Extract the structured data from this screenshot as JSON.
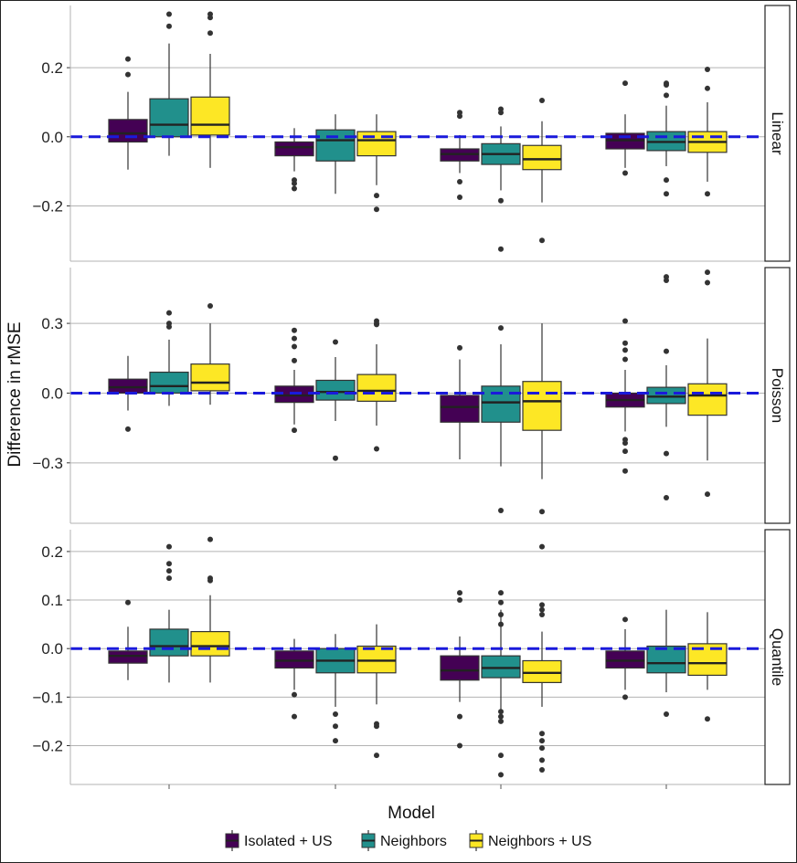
{
  "chart_data": {
    "type": "box",
    "ylabel": "Difference in rMSE",
    "xlabel": "",
    "legend": {
      "title": "Model",
      "placement": "bottom",
      "entries": [
        "Isolated + US",
        "Neighbors",
        "Neighbors + US"
      ]
    },
    "colors": {
      "Isolated + US": "#440154",
      "Neighbors": "#21908C",
      "Neighbors + US": "#FDE725",
      "reference_line": "#1a1adb",
      "grid": "#b3b3b3"
    },
    "reference_line_y": 0,
    "groups": 4,
    "panels": [
      {
        "facet": "Linear",
        "ylim": [
          -0.36,
          0.38
        ],
        "yticks": [
          0.2,
          0.0,
          -0.2
        ],
        "ytick_labels": [
          "0.2",
          "0.0",
          "−0.2"
        ],
        "groups": [
          [
            {
              "series": "Isolated + US",
              "q1": -0.015,
              "median": 0.01,
              "q3": 0.05,
              "whisker_low": -0.095,
              "whisker_high": 0.13,
              "outliers": [
                0.225,
                0.18
              ]
            },
            {
              "series": "Neighbors",
              "q1": 0.0,
              "median": 0.035,
              "q3": 0.11,
              "whisker_low": -0.055,
              "whisker_high": 0.27,
              "outliers": [
                0.355,
                0.32
              ]
            },
            {
              "series": "Neighbors + US",
              "q1": 0.005,
              "median": 0.035,
              "q3": 0.115,
              "whisker_low": -0.09,
              "whisker_high": 0.24,
              "outliers": [
                0.355,
                0.345,
                0.3
              ]
            }
          ],
          [
            {
              "series": "Isolated + US",
              "q1": -0.055,
              "median": -0.03,
              "q3": -0.015,
              "whisker_low": -0.1,
              "whisker_high": 0.025,
              "outliers": [
                -0.125,
                -0.135,
                -0.15
              ]
            },
            {
              "series": "Neighbors",
              "q1": -0.07,
              "median": -0.01,
              "q3": 0.02,
              "whisker_low": -0.165,
              "whisker_high": 0.065,
              "outliers": []
            },
            {
              "series": "Neighbors + US",
              "q1": -0.055,
              "median": -0.01,
              "q3": 0.015,
              "whisker_low": -0.14,
              "whisker_high": 0.065,
              "outliers": [
                -0.17,
                -0.21
              ]
            }
          ],
          [
            {
              "series": "Isolated + US",
              "q1": -0.07,
              "median": -0.05,
              "q3": -0.035,
              "whisker_low": -0.105,
              "whisker_high": 0.005,
              "outliers": [
                0.07,
                0.06,
                -0.13,
                -0.175
              ]
            },
            {
              "series": "Neighbors",
              "q1": -0.08,
              "median": -0.05,
              "q3": -0.02,
              "whisker_low": -0.155,
              "whisker_high": 0.03,
              "outliers": [
                0.08,
                0.07,
                -0.185,
                -0.325
              ]
            },
            {
              "series": "Neighbors + US",
              "q1": -0.095,
              "median": -0.065,
              "q3": -0.025,
              "whisker_low": -0.19,
              "whisker_high": 0.045,
              "outliers": [
                0.105,
                -0.3
              ]
            }
          ],
          [
            {
              "series": "Isolated + US",
              "q1": -0.035,
              "median": -0.01,
              "q3": 0.01,
              "whisker_low": -0.09,
              "whisker_high": 0.065,
              "outliers": [
                0.155,
                -0.105
              ]
            },
            {
              "series": "Neighbors",
              "q1": -0.04,
              "median": -0.015,
              "q3": 0.015,
              "whisker_low": -0.085,
              "whisker_high": 0.09,
              "outliers": [
                0.155,
                0.15,
                0.12,
                -0.125,
                -0.165
              ]
            },
            {
              "series": "Neighbors + US",
              "q1": -0.045,
              "median": -0.015,
              "q3": 0.015,
              "whisker_low": -0.13,
              "whisker_high": 0.1,
              "outliers": [
                0.195,
                0.14,
                -0.165
              ]
            }
          ]
        ]
      },
      {
        "facet": "Poisson",
        "ylim": [
          -0.56,
          0.54
        ],
        "yticks": [
          0.3,
          0.0,
          -0.3
        ],
        "ytick_labels": [
          "0.3",
          "0.0",
          "−0.3"
        ],
        "groups": [
          [
            {
              "series": "Isolated + US",
              "q1": 0.0,
              "median": 0.025,
              "q3": 0.06,
              "whisker_low": -0.075,
              "whisker_high": 0.16,
              "outliers": [
                -0.155
              ]
            },
            {
              "series": "Neighbors",
              "q1": 0.0,
              "median": 0.03,
              "q3": 0.09,
              "whisker_low": -0.055,
              "whisker_high": 0.23,
              "outliers": [
                0.345,
                0.3,
                0.285
              ]
            },
            {
              "series": "Neighbors + US",
              "q1": 0.01,
              "median": 0.045,
              "q3": 0.125,
              "whisker_low": -0.05,
              "whisker_high": 0.3,
              "outliers": [
                0.375
              ]
            }
          ],
          [
            {
              "series": "Isolated + US",
              "q1": -0.04,
              "median": -0.01,
              "q3": 0.03,
              "whisker_low": -0.135,
              "whisker_high": 0.1,
              "outliers": [
                0.27,
                0.235,
                0.2,
                0.14,
                -0.16
              ]
            },
            {
              "series": "Neighbors",
              "q1": -0.03,
              "median": 0.005,
              "q3": 0.055,
              "whisker_low": -0.12,
              "whisker_high": 0.155,
              "outliers": [
                0.22,
                -0.28
              ]
            },
            {
              "series": "Neighbors + US",
              "q1": -0.035,
              "median": 0.01,
              "q3": 0.08,
              "whisker_low": -0.14,
              "whisker_high": 0.21,
              "outliers": [
                0.31,
                0.3,
                0.295,
                -0.24
              ]
            }
          ],
          [
            {
              "series": "Isolated + US",
              "q1": -0.125,
              "median": -0.06,
              "q3": -0.01,
              "whisker_low": -0.285,
              "whisker_high": 0.145,
              "outliers": [
                0.195
              ]
            },
            {
              "series": "Neighbors",
              "q1": -0.125,
              "median": -0.04,
              "q3": 0.03,
              "whisker_low": -0.315,
              "whisker_high": 0.21,
              "outliers": [
                0.28,
                -0.505
              ]
            },
            {
              "series": "Neighbors + US",
              "q1": -0.16,
              "median": -0.035,
              "q3": 0.05,
              "whisker_low": -0.37,
              "whisker_high": 0.3,
              "outliers": [
                -0.51
              ]
            }
          ],
          [
            {
              "series": "Isolated + US",
              "q1": -0.06,
              "median": -0.03,
              "q3": 0.0,
              "whisker_low": -0.165,
              "whisker_high": 0.1,
              "outliers": [
                0.31,
                0.215,
                0.185,
                0.145,
                -0.2,
                -0.215,
                -0.25,
                -0.335
              ]
            },
            {
              "series": "Neighbors",
              "q1": -0.045,
              "median": -0.015,
              "q3": 0.025,
              "whisker_low": -0.145,
              "whisker_high": 0.12,
              "outliers": [
                0.5,
                0.485,
                0.18,
                -0.26,
                -0.45
              ]
            },
            {
              "series": "Neighbors + US",
              "q1": -0.095,
              "median": -0.01,
              "q3": 0.04,
              "whisker_low": -0.29,
              "whisker_high": 0.235,
              "outliers": [
                0.52,
                0.475,
                -0.435
              ]
            }
          ]
        ]
      },
      {
        "facet": "Quantile",
        "ylim": [
          -0.28,
          0.245
        ],
        "yticks": [
          0.2,
          0.1,
          0.0,
          -0.1,
          -0.2
        ],
        "ytick_labels": [
          "0.2",
          "0.1",
          "0.0",
          "−0.1",
          "−0.2"
        ],
        "groups": [
          [
            {
              "series": "Isolated + US",
              "q1": -0.03,
              "median": -0.015,
              "q3": -0.005,
              "whisker_low": -0.065,
              "whisker_high": 0.045,
              "outliers": [
                0.095
              ]
            },
            {
              "series": "Neighbors",
              "q1": -0.015,
              "median": 0.005,
              "q3": 0.04,
              "whisker_low": -0.07,
              "whisker_high": 0.08,
              "outliers": [
                0.21,
                0.175,
                0.16,
                0.145
              ]
            },
            {
              "series": "Neighbors + US",
              "q1": -0.015,
              "median": 0.005,
              "q3": 0.035,
              "whisker_low": -0.07,
              "whisker_high": 0.11,
              "outliers": [
                0.225,
                0.145,
                0.14
              ]
            }
          ],
          [
            {
              "series": "Isolated + US",
              "q1": -0.04,
              "median": -0.025,
              "q3": -0.005,
              "whisker_low": -0.085,
              "whisker_high": 0.02,
              "outliers": [
                -0.095,
                -0.14
              ]
            },
            {
              "series": "Neighbors",
              "q1": -0.05,
              "median": -0.025,
              "q3": 0.0,
              "whisker_low": -0.12,
              "whisker_high": 0.03,
              "outliers": [
                -0.135,
                -0.16,
                -0.19
              ]
            },
            {
              "series": "Neighbors + US",
              "q1": -0.05,
              "median": -0.025,
              "q3": 0.005,
              "whisker_low": -0.115,
              "whisker_high": 0.05,
              "outliers": [
                -0.155,
                -0.16,
                -0.22
              ]
            }
          ],
          [
            {
              "series": "Isolated + US",
              "q1": -0.065,
              "median": -0.045,
              "q3": -0.015,
              "whisker_low": -0.11,
              "whisker_high": 0.025,
              "outliers": [
                0.115,
                0.1,
                -0.14,
                -0.2
              ]
            },
            {
              "series": "Neighbors",
              "q1": -0.06,
              "median": -0.04,
              "q3": -0.015,
              "whisker_low": -0.125,
              "whisker_high": 0.08,
              "outliers": [
                0.115,
                0.095,
                0.07,
                0.05,
                -0.13,
                -0.14,
                -0.15,
                -0.22,
                -0.26
              ]
            },
            {
              "series": "Neighbors + US",
              "q1": -0.07,
              "median": -0.05,
              "q3": -0.025,
              "whisker_low": -0.12,
              "whisker_high": 0.035,
              "outliers": [
                0.21,
                0.09,
                0.08,
                0.07,
                -0.175,
                -0.19,
                -0.205,
                -0.23,
                -0.25
              ]
            }
          ],
          [
            {
              "series": "Isolated + US",
              "q1": -0.04,
              "median": -0.025,
              "q3": -0.005,
              "whisker_low": -0.085,
              "whisker_high": 0.04,
              "outliers": [
                0.06,
                -0.1
              ]
            },
            {
              "series": "Neighbors",
              "q1": -0.05,
              "median": -0.03,
              "q3": 0.005,
              "whisker_low": -0.09,
              "whisker_high": 0.08,
              "outliers": [
                -0.135
              ]
            },
            {
              "series": "Neighbors + US",
              "q1": -0.055,
              "median": -0.03,
              "q3": 0.01,
              "whisker_low": -0.085,
              "whisker_high": 0.075,
              "outliers": [
                -0.145
              ]
            }
          ]
        ]
      }
    ]
  }
}
